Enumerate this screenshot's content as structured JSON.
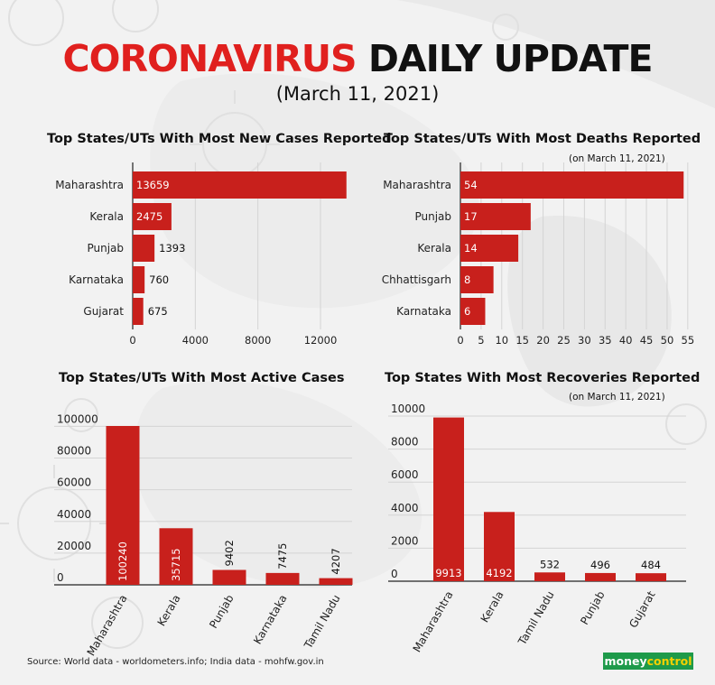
{
  "header": {
    "title_red": "CORONAVIRUS",
    "title_black": "DAILY UPDATE",
    "date": "(March 11, 2021)"
  },
  "footer": {
    "source": "Source: World data - worldometers.info; India data - mohfw.gov.in",
    "logo_part1": "money",
    "logo_part2": "control"
  },
  "colors": {
    "bar": "#c8201c",
    "title_red": "#e0201e",
    "grid": "#d4d4d4",
    "logo": "#1e9a4a"
  },
  "chart_data": [
    {
      "id": "new-cases",
      "type": "bar",
      "orientation": "horizontal",
      "title": "Top States/UTs With Most New Cases Reported",
      "subtitle": "",
      "categories": [
        "Maharashtra",
        "Kerala",
        "Punjab",
        "Karnataka",
        "Gujarat"
      ],
      "values": [
        13659,
        2475,
        1393,
        760,
        675
      ],
      "labels": [
        "13659",
        "2475",
        "1393",
        "760",
        "675"
      ],
      "xlim": [
        0,
        15000
      ],
      "ticks": [
        0,
        4000,
        8000,
        12000
      ],
      "tick_labels": [
        "0",
        "4000",
        "8000",
        "12000"
      ],
      "grid": true
    },
    {
      "id": "deaths",
      "type": "bar",
      "orientation": "horizontal",
      "title": "Top States/UTs With Most Deaths Reported",
      "subtitle": "(on March 11, 2021)",
      "categories": [
        "Maharashtra",
        "Punjab",
        "Kerala",
        "Chhattisgarh",
        "Karnataka"
      ],
      "values": [
        54,
        17,
        14,
        8,
        6
      ],
      "labels": [
        "54",
        "17",
        "14",
        "8",
        "6"
      ],
      "xlim": [
        0,
        57
      ],
      "ticks": [
        0,
        5,
        10,
        15,
        20,
        25,
        30,
        35,
        40,
        45,
        50,
        55
      ],
      "tick_labels": [
        "0",
        "5",
        "10",
        "15",
        "20",
        "25",
        "30",
        "35",
        "40",
        "45",
        "50",
        "55"
      ],
      "grid": true
    },
    {
      "id": "active",
      "type": "bar",
      "orientation": "vertical",
      "title": "Top States/UTs With Most Active Cases",
      "subtitle": "",
      "categories": [
        "Maharashtra",
        "Kerala",
        "Punjab",
        "Karnataka",
        "Tamil Nadu"
      ],
      "values": [
        100240,
        35715,
        9402,
        7475,
        4207
      ],
      "labels": [
        "100240",
        "35715",
        "9402",
        "7475",
        "4207"
      ],
      "ylim": [
        0,
        100240
      ],
      "ticks": [
        0,
        20000,
        40000,
        60000,
        80000,
        100000
      ],
      "tick_labels": [
        "0",
        "20000",
        "40000",
        "60000",
        "80000",
        "100000"
      ],
      "grid": true
    },
    {
      "id": "recoveries",
      "type": "bar",
      "orientation": "vertical",
      "title": "Top States With Most Recoveries Reported",
      "subtitle": "(on March 11, 2021)",
      "categories": [
        "Maharashtra",
        "Kerala",
        "Tamil Nadu",
        "Punjab",
        "Gujarat"
      ],
      "values": [
        9913,
        4192,
        532,
        496,
        484
      ],
      "labels": [
        "9913",
        "4192",
        "532",
        "496",
        "484"
      ],
      "ylim": [
        0,
        10000
      ],
      "ticks": [
        0,
        2000,
        4000,
        6000,
        8000,
        10000
      ],
      "tick_labels": [
        "0",
        "2000",
        "4000",
        "6000",
        "8000",
        "10000"
      ],
      "grid": true
    }
  ]
}
